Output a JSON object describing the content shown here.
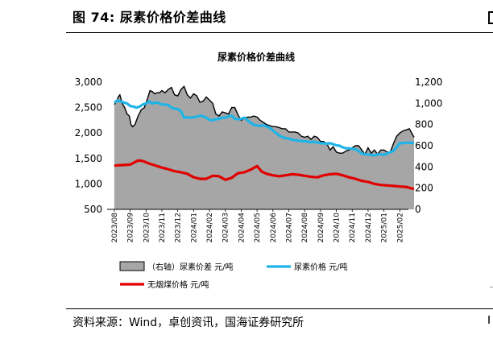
{
  "figure": {
    "title": "图 74:  尿素价格价差曲线",
    "source": "资料来源：Wind，卓创资讯，国海证券研究所"
  },
  "colors": {
    "spread_fill": "#a6a6a6",
    "spread_line": "#000000",
    "urea_price": "#1eb4e8",
    "coal_price": "#e00000"
  },
  "chart_data": {
    "type": "area",
    "title": "尿素价格价差曲线",
    "left_axis": {
      "ylim": [
        500,
        3000
      ],
      "ticks": [
        "3,000",
        "2,500",
        "2,000",
        "1,500",
        "1,000",
        "500"
      ],
      "tick_values": [
        3000,
        2500,
        2000,
        1500,
        1000,
        500
      ]
    },
    "right_axis": {
      "ylim": [
        0,
        1200
      ],
      "ticks": [
        "1,200",
        "1,000",
        "800",
        "600",
        "400",
        "200",
        "0"
      ],
      "tick_values": [
        1200,
        1000,
        800,
        600,
        400,
        200,
        0
      ]
    },
    "x_ticks": [
      "2023/08",
      "2023/09",
      "2023/10",
      "2023/11",
      "2023/12",
      "2024/01",
      "2024/02",
      "2024/03",
      "2024/04",
      "2024/05",
      "2024/06",
      "2024/07",
      "2024/08",
      "2024/09",
      "2024/10",
      "2024/11",
      "2024/12",
      "2025/01",
      "2025/02"
    ],
    "legend": [
      "（右轴）尿素价差  元/吨",
      "尿素价格  元/吨",
      "无烟煤价格  元/吨"
    ],
    "legend_placement": "bottom",
    "series": [
      {
        "name": "（右轴）尿素价差  元/吨",
        "axis": "right",
        "kind": "area",
        "x": [
          0,
          0.15,
          0.25,
          0.35,
          0.5,
          0.65,
          0.8,
          0.95,
          1.05,
          1.15,
          1.3,
          1.5,
          1.7,
          1.9,
          2.1,
          2.25,
          2.4,
          2.55,
          2.7,
          2.85,
          3.0,
          3.2,
          3.4,
          3.6,
          3.8,
          4.0,
          4.2,
          4.4,
          4.6,
          4.8,
          5.0,
          5.2,
          5.4,
          5.6,
          5.8,
          6.0,
          6.2,
          6.4,
          6.6,
          6.8,
          7.0,
          7.2,
          7.4,
          7.6,
          7.8,
          8.0,
          8.2,
          8.4,
          8.6,
          8.8,
          9.0,
          9.2,
          9.4,
          9.6,
          9.8,
          10.0,
          10.2,
          10.4,
          10.6,
          10.8,
          11.0,
          11.2,
          11.4,
          11.6,
          11.8,
          12.0,
          12.2,
          12.4,
          12.6,
          12.8,
          13.0,
          13.2,
          13.4,
          13.6,
          13.8,
          14.0,
          14.2,
          14.4,
          14.6,
          14.8,
          15.0,
          15.2,
          15.4,
          15.6,
          15.8,
          16.0,
          16.2,
          16.4,
          16.6,
          16.8,
          17.0,
          17.2,
          17.4,
          17.6,
          17.8,
          18.0,
          18.2,
          18.4,
          18.6,
          18.9
        ],
        "values": [
          990,
          1020,
          1060,
          1080,
          1000,
          960,
          900,
          880,
          800,
          780,
          800,
          880,
          940,
          960,
          1050,
          1120,
          1110,
          1090,
          1100,
          1100,
          1120,
          1100,
          1130,
          1150,
          1080,
          1070,
          1130,
          1160,
          1080,
          1050,
          1090,
          1070,
          1010,
          1020,
          1060,
          1030,
          1000,
          900,
          880,
          920,
          910,
          900,
          960,
          960,
          890,
          840,
          860,
          870,
          870,
          880,
          870,
          840,
          820,
          800,
          790,
          780,
          780,
          770,
          760,
          760,
          730,
          730,
          730,
          720,
          690,
          680,
          690,
          660,
          690,
          680,
          640,
          640,
          620,
          560,
          590,
          540,
          530,
          530,
          550,
          560,
          580,
          600,
          600,
          560,
          520,
          580,
          530,
          560,
          520,
          560,
          560,
          540,
          540,
          620,
          690,
          720,
          740,
          750,
          760,
          680
        ]
      },
      {
        "name": "尿素价格  元/吨",
        "axis": "left",
        "kind": "line",
        "x": [
          0,
          0.2,
          0.4,
          0.6,
          0.8,
          1.0,
          1.2,
          1.4,
          1.6,
          1.8,
          2.0,
          2.2,
          2.4,
          2.6,
          2.8,
          3.0,
          3.2,
          3.4,
          3.6,
          3.8,
          4.0,
          4.2,
          4.4,
          4.6,
          4.8,
          5.0,
          5.2,
          5.4,
          5.6,
          5.8,
          6.0,
          6.2,
          6.4,
          6.6,
          6.8,
          7.0,
          7.2,
          7.4,
          7.6,
          7.8,
          8.0,
          8.2,
          8.4,
          8.6,
          8.8,
          9.0,
          9.2,
          9.4,
          9.6,
          9.8,
          10.0,
          10.2,
          10.4,
          10.6,
          10.8,
          11.0,
          11.2,
          11.4,
          11.6,
          11.8,
          12.0,
          12.2,
          12.4,
          12.6,
          12.8,
          13.0,
          13.2,
          13.4,
          13.6,
          13.8,
          14.0,
          14.2,
          14.4,
          14.6,
          14.8,
          15.0,
          15.2,
          15.4,
          15.6,
          15.8,
          16.0,
          16.2,
          16.4,
          16.6,
          16.8,
          17.0,
          17.2,
          17.4,
          17.6,
          17.8,
          18.0,
          18.2,
          18.4,
          18.6,
          18.9
        ],
        "values": [
          2600,
          2640,
          2620,
          2600,
          2580,
          2530,
          2520,
          2500,
          2520,
          2560,
          2580,
          2620,
          2580,
          2600,
          2590,
          2560,
          2560,
          2550,
          2500,
          2480,
          2470,
          2430,
          2300,
          2310,
          2300,
          2310,
          2320,
          2340,
          2330,
          2300,
          2260,
          2250,
          2270,
          2280,
          2300,
          2300,
          2330,
          2340,
          2280,
          2270,
          2280,
          2300,
          2250,
          2200,
          2160,
          2150,
          2140,
          2150,
          2130,
          2100,
          2050,
          2000,
          1950,
          1920,
          1900,
          1890,
          1870,
          1860,
          1850,
          1840,
          1840,
          1830,
          1820,
          1830,
          1810,
          1800,
          1800,
          1790,
          1800,
          1780,
          1760,
          1750,
          1720,
          1700,
          1700,
          1690,
          1680,
          1650,
          1600,
          1580,
          1580,
          1570,
          1560,
          1580,
          1580,
          1570,
          1600,
          1620,
          1650,
          1720,
          1800,
          1800,
          1810,
          1810,
          1800
        ]
      },
      {
        "name": "无烟煤价格  元/吨",
        "axis": "left",
        "kind": "line",
        "x": [
          0,
          0.5,
          1.0,
          1.5,
          1.8,
          2.2,
          2.6,
          3.0,
          3.4,
          3.8,
          4.2,
          4.6,
          5.0,
          5.4,
          5.8,
          6.2,
          6.6,
          7.0,
          7.4,
          7.8,
          8.2,
          8.6,
          9.0,
          9.3,
          9.6,
          10.0,
          10.4,
          10.8,
          11.2,
          11.6,
          12.0,
          12.4,
          12.8,
          13.2,
          13.6,
          14.0,
          14.4,
          14.8,
          15.2,
          15.6,
          16.0,
          16.4,
          16.8,
          17.2,
          17.6,
          18.0,
          18.4,
          18.9
        ],
        "values": [
          1360,
          1370,
          1380,
          1460,
          1450,
          1400,
          1360,
          1320,
          1290,
          1250,
          1230,
          1200,
          1130,
          1100,
          1100,
          1160,
          1150,
          1080,
          1120,
          1210,
          1230,
          1280,
          1350,
          1240,
          1200,
          1170,
          1150,
          1170,
          1190,
          1180,
          1160,
          1140,
          1130,
          1170,
          1190,
          1200,
          1170,
          1130,
          1100,
          1060,
          1040,
          1000,
          980,
          970,
          960,
          950,
          940,
          900
        ]
      }
    ]
  }
}
